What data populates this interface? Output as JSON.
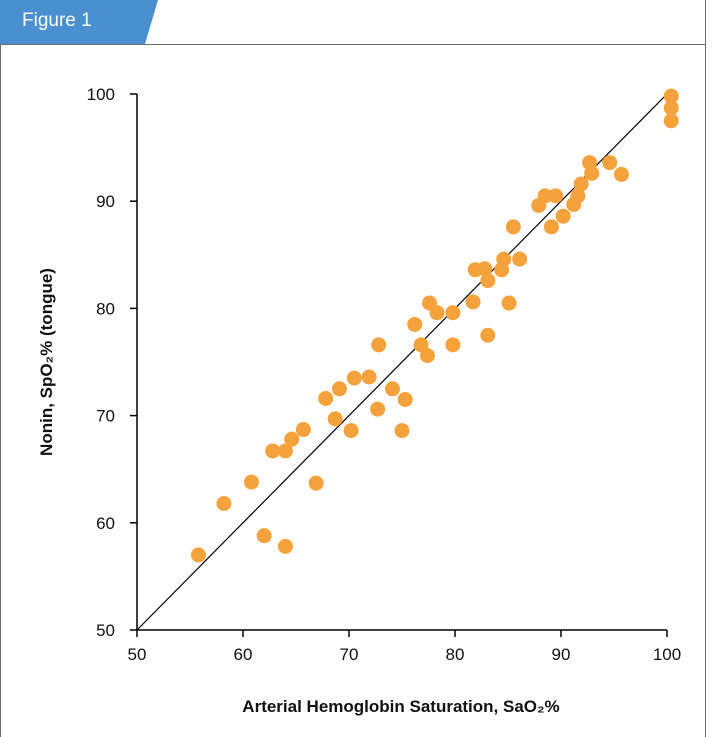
{
  "figure_label": "Figure 1",
  "colors": {
    "tab": "#4a8fd0",
    "point": "#f5a23c",
    "line": "#000000",
    "frame": "#6c6c6c"
  },
  "chart_data": {
    "type": "scatter",
    "xlabel": "Arterial Hemoglobin Saturation, SaO₂%",
    "ylabel": "Nonin, SpO₂% (tongue)",
    "xlim": [
      50,
      100
    ],
    "ylim": [
      50,
      100
    ],
    "xticks": [
      50,
      60,
      70,
      80,
      90,
      100
    ],
    "yticks": [
      50,
      60,
      70,
      80,
      90,
      100
    ],
    "grid": false,
    "reference_line": {
      "from": [
        50,
        50
      ],
      "to": [
        100,
        100
      ]
    },
    "points": [
      [
        55.8,
        57.0
      ],
      [
        58.2,
        61.8
      ],
      [
        60.8,
        63.8
      ],
      [
        62.0,
        58.8
      ],
      [
        62.8,
        66.7
      ],
      [
        64.0,
        66.7
      ],
      [
        64.0,
        57.8
      ],
      [
        64.6,
        67.8
      ],
      [
        65.7,
        68.7
      ],
      [
        66.9,
        63.7
      ],
      [
        67.8,
        71.6
      ],
      [
        68.7,
        69.7
      ],
      [
        69.1,
        72.5
      ],
      [
        70.2,
        68.6
      ],
      [
        70.5,
        73.5
      ],
      [
        71.9,
        73.6
      ],
      [
        72.7,
        70.6
      ],
      [
        72.8,
        76.6
      ],
      [
        74.1,
        72.5
      ],
      [
        75.0,
        68.6
      ],
      [
        75.3,
        71.5
      ],
      [
        76.2,
        78.5
      ],
      [
        76.8,
        76.6
      ],
      [
        77.4,
        75.6
      ],
      [
        77.6,
        80.5
      ],
      [
        78.3,
        79.6
      ],
      [
        79.8,
        79.6
      ],
      [
        79.8,
        76.6
      ],
      [
        81.7,
        80.6
      ],
      [
        81.9,
        83.6
      ],
      [
        82.8,
        83.7
      ],
      [
        83.1,
        82.6
      ],
      [
        83.1,
        77.5
      ],
      [
        84.4,
        83.6
      ],
      [
        84.6,
        84.6
      ],
      [
        85.1,
        80.5
      ],
      [
        85.5,
        87.6
      ],
      [
        86.1,
        84.6
      ],
      [
        87.9,
        89.6
      ],
      [
        88.5,
        90.5
      ],
      [
        89.1,
        87.6
      ],
      [
        89.5,
        90.5
      ],
      [
        90.2,
        88.6
      ],
      [
        91.2,
        89.7
      ],
      [
        91.6,
        90.5
      ],
      [
        91.9,
        91.6
      ],
      [
        92.7,
        93.6
      ],
      [
        92.9,
        92.6
      ],
      [
        94.6,
        93.6
      ],
      [
        95.7,
        92.5
      ],
      [
        100.4,
        99.8
      ],
      [
        100.4,
        98.7
      ],
      [
        100.4,
        97.5
      ]
    ]
  }
}
